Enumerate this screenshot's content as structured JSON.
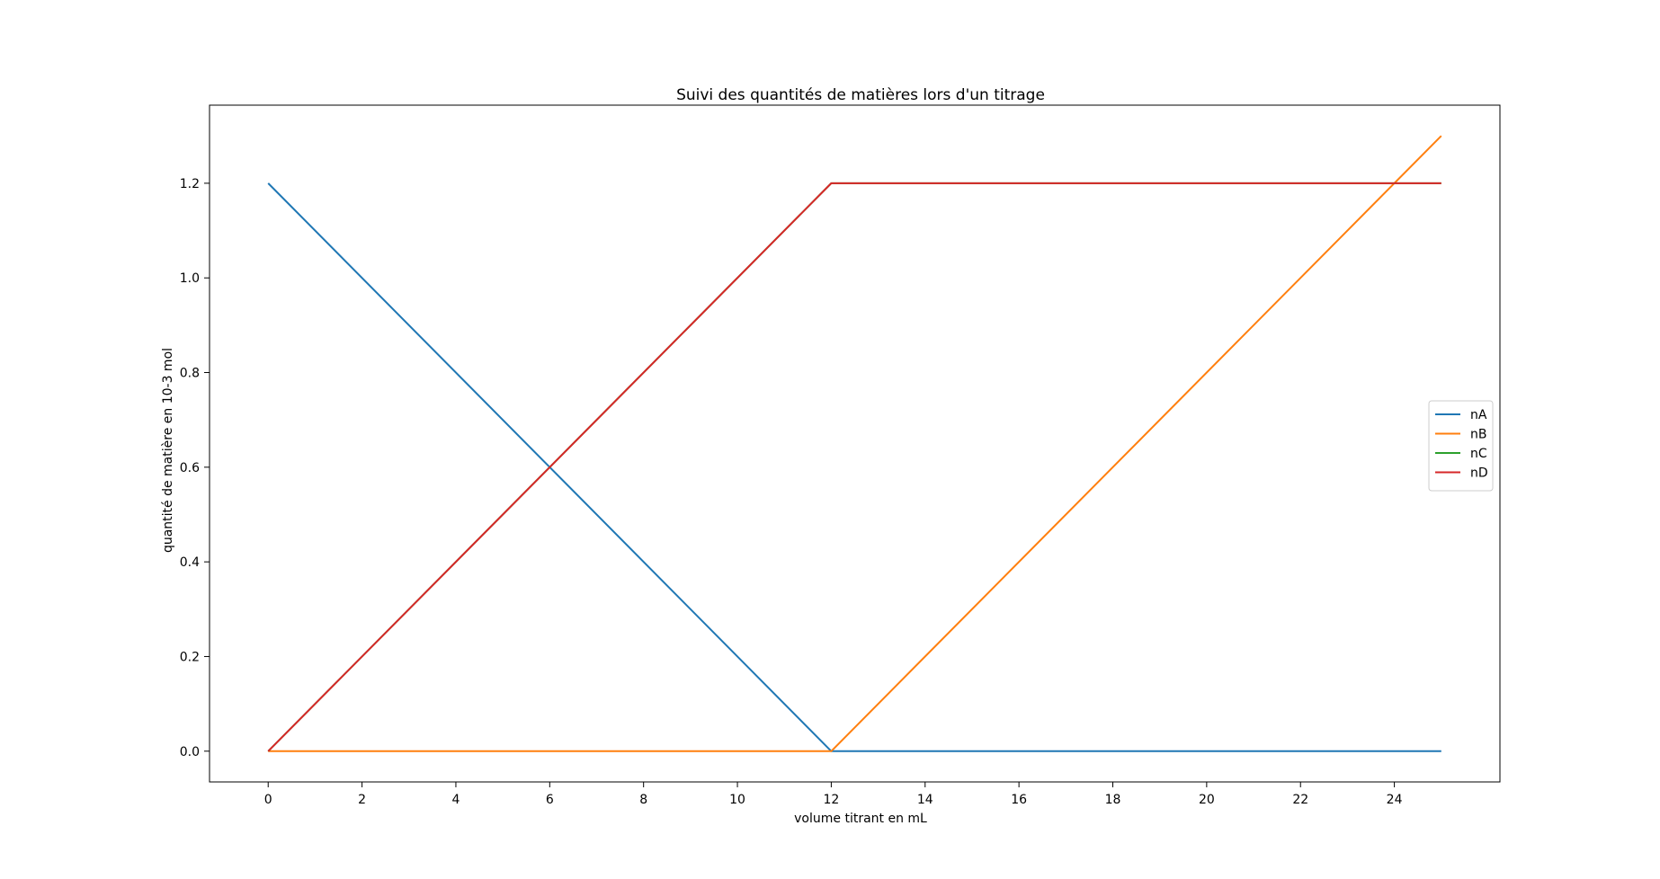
{
  "chart_data": {
    "type": "line",
    "title": "Suivi des quantités de matières lors d'un titrage",
    "xlabel": "volume titrant en mL",
    "ylabel": "quantité de matière en 10-3 mol",
    "xlim": [
      -1.25,
      26.25
    ],
    "ylim": [
      -0.065,
      1.365
    ],
    "xticks": [
      0,
      2,
      4,
      6,
      8,
      10,
      12,
      14,
      16,
      18,
      20,
      22,
      24
    ],
    "xtick_labels": [
      "0",
      "2",
      "4",
      "6",
      "8",
      "10",
      "12",
      "14",
      "16",
      "18",
      "20",
      "22",
      "24"
    ],
    "yticks": [
      0.0,
      0.2,
      0.4,
      0.6,
      0.8,
      1.0,
      1.2
    ],
    "ytick_labels": [
      "0.0",
      "0.2",
      "0.4",
      "0.6",
      "0.8",
      "1.0",
      "1.2"
    ],
    "grid": false,
    "legend_position": "center-right",
    "series": [
      {
        "name": "nA",
        "color": "#1f77b4",
        "x": [
          0,
          12,
          25
        ],
        "y": [
          1.2,
          0.0,
          0.0
        ]
      },
      {
        "name": "nB",
        "color": "#ff7f0e",
        "x": [
          0,
          12,
          25
        ],
        "y": [
          0.0,
          0.0,
          1.3
        ]
      },
      {
        "name": "nC",
        "color": "#2ca02c",
        "x": [
          0,
          12,
          25
        ],
        "y": [
          0.0,
          1.2,
          1.2
        ]
      },
      {
        "name": "nD",
        "color": "#d62728",
        "x": [
          0,
          12,
          25
        ],
        "y": [
          0.0,
          1.2,
          1.2
        ]
      }
    ]
  }
}
